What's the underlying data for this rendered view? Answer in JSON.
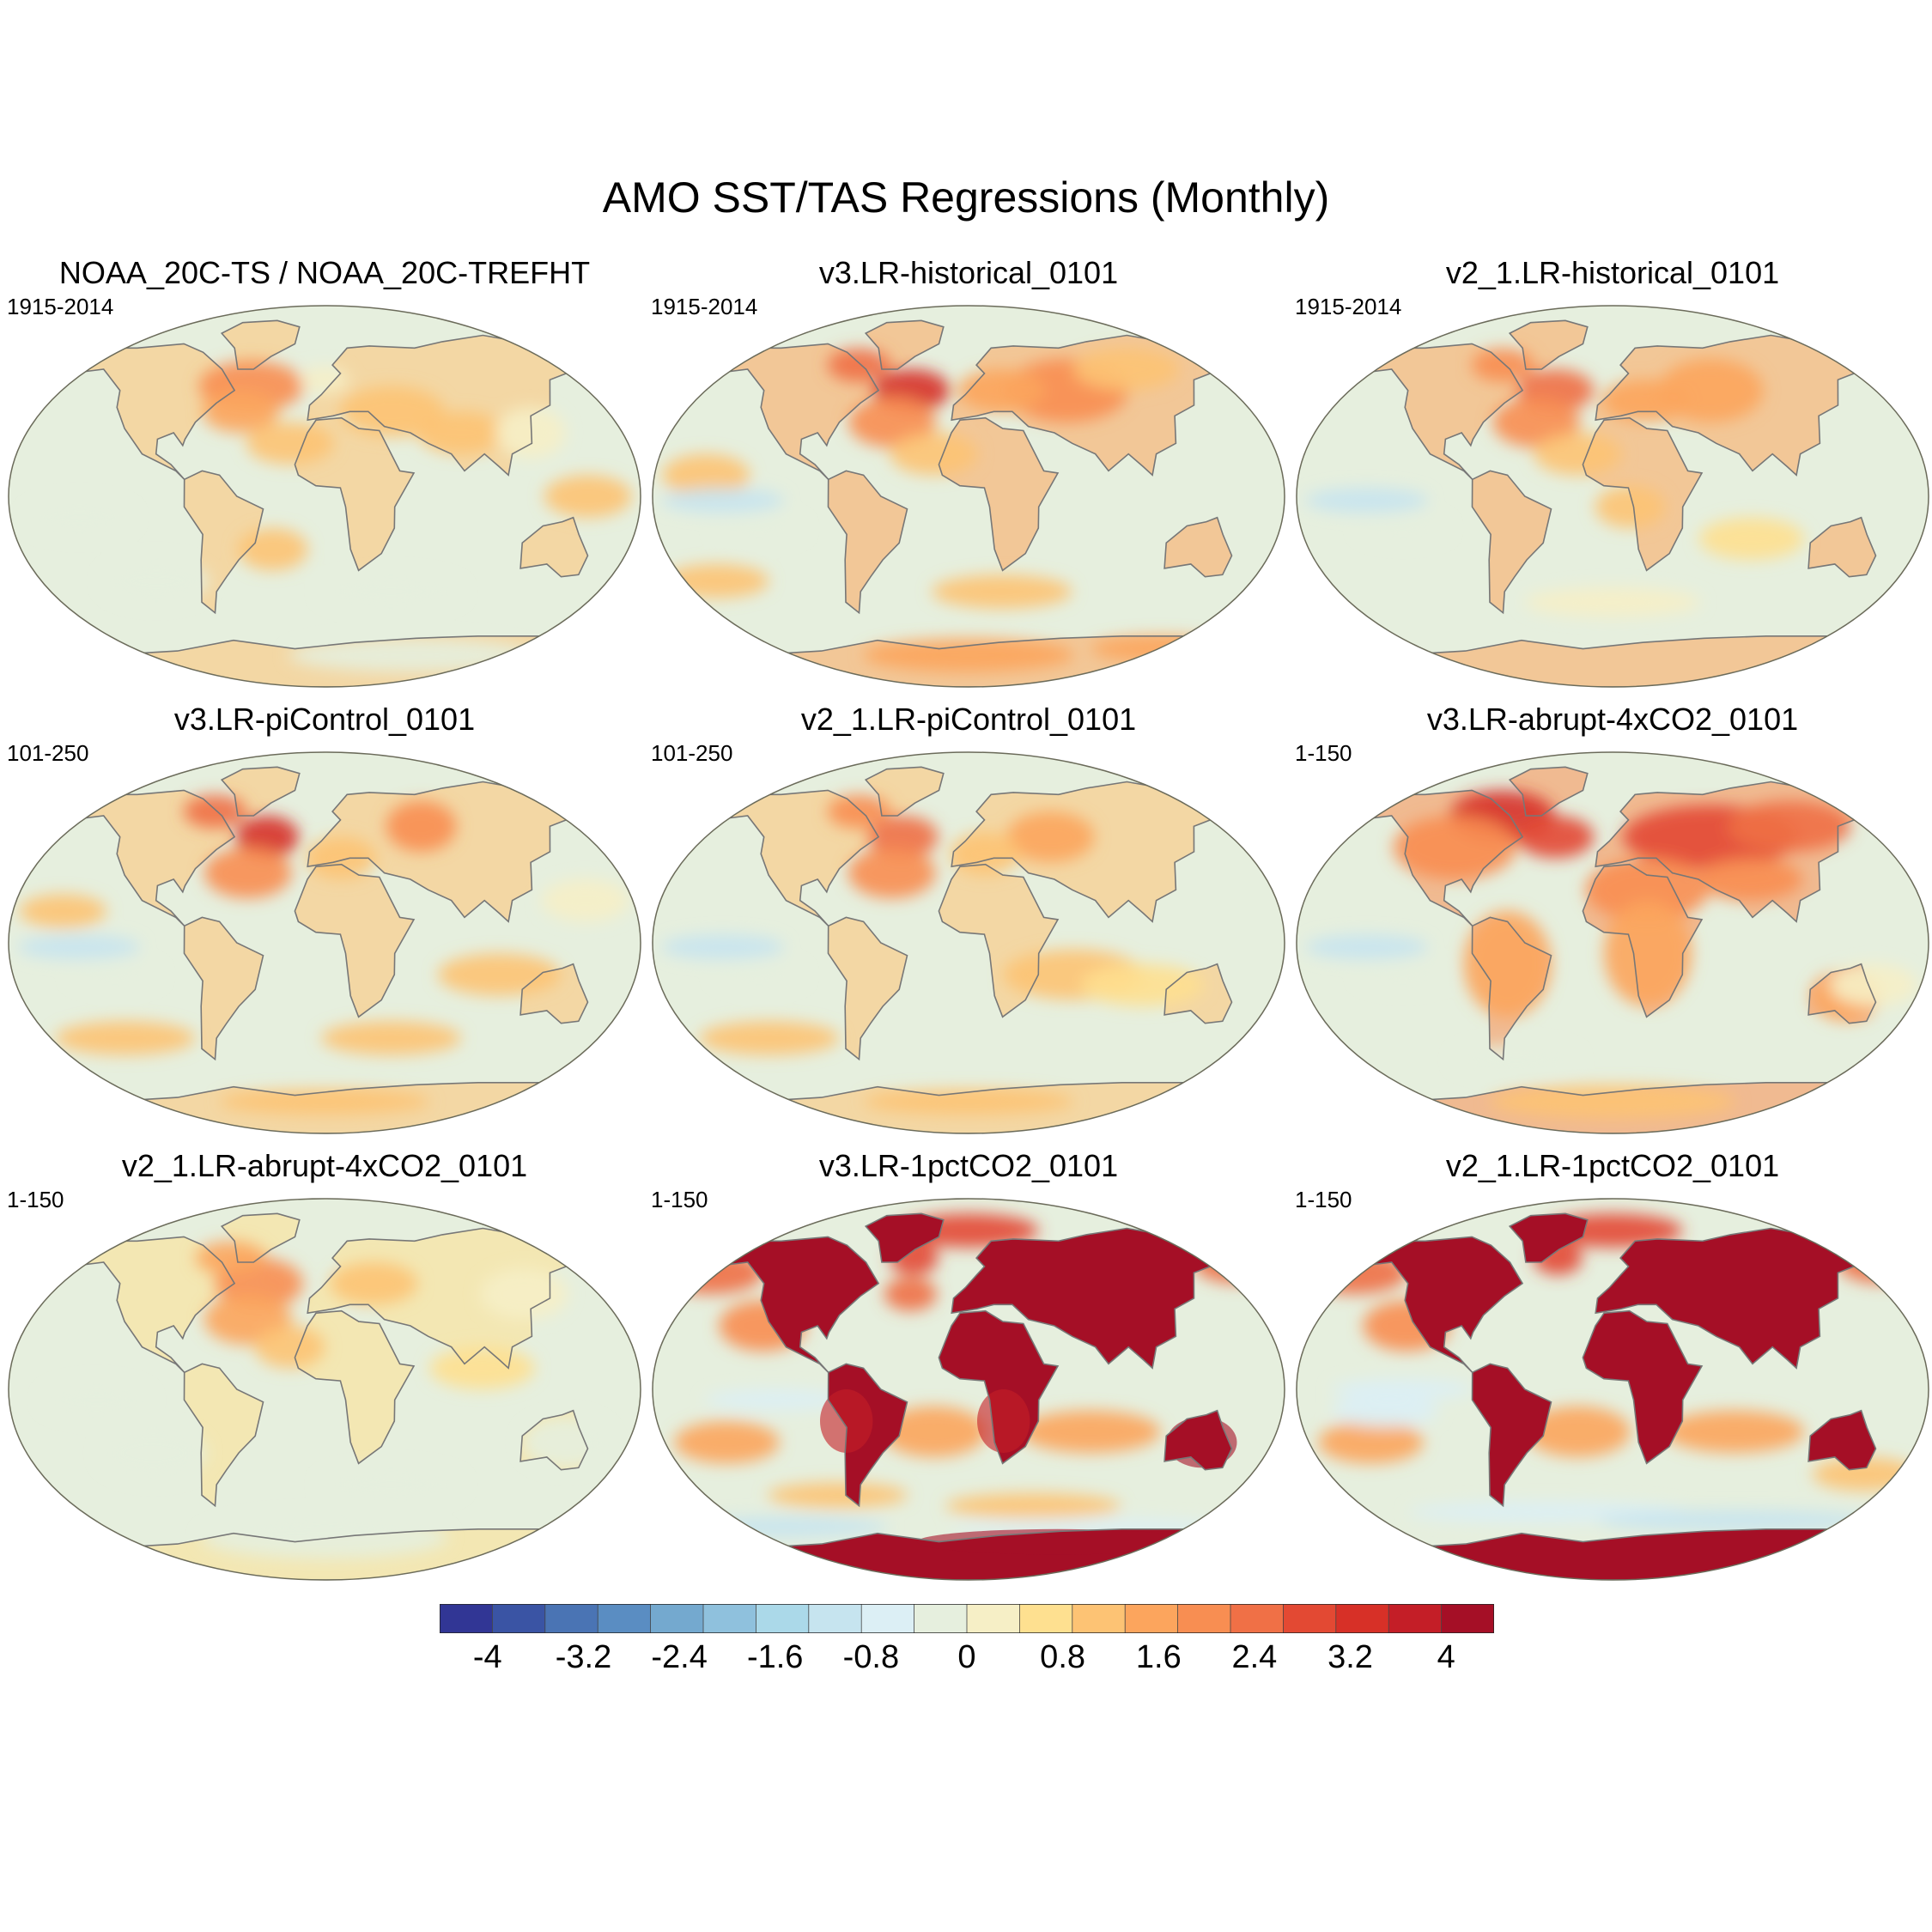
{
  "title": "AMO SST/TAS Regressions (Monthly)",
  "colors": {
    "ocean_base": "#e6efde",
    "coast": "#777777",
    "frame": "#6b6b5a",
    "scale": [
      "#313695",
      "#3a54a4",
      "#4a74b4",
      "#5a8dc2",
      "#74a9cf",
      "#8fc1dd",
      "#abd9e9",
      "#c6e4ef",
      "#dceff5",
      "#e6efde",
      "#f6efc6",
      "#fee090",
      "#fdc374",
      "#fca55d",
      "#f88e52",
      "#f07046",
      "#e34933",
      "#d73027",
      "#c41e27",
      "#a50f26"
    ]
  },
  "panels": [
    {
      "title": "NOAA_20C-TS / NOAA_20C-TREFHT",
      "period": "1915-2014",
      "pattern": "obs"
    },
    {
      "title": "v3.LR-historical_0101",
      "period": "1915-2014",
      "pattern": "hist"
    },
    {
      "title": "v2_1.LR-historical_0101",
      "period": "1915-2014",
      "pattern": "hist2"
    },
    {
      "title": "v3.LR-piControl_0101",
      "period": "101-250",
      "pattern": "pic"
    },
    {
      "title": "v2_1.LR-piControl_0101",
      "period": "101-250",
      "pattern": "pic2"
    },
    {
      "title": "v3.LR-abrupt-4xCO2_0101",
      "period": "1-150",
      "pattern": "abrupt"
    },
    {
      "title": "v2_1.LR-abrupt-4xCO2_0101",
      "period": "1-150",
      "pattern": "abrupt2"
    },
    {
      "title": "v3.LR-1pctCO2_0101",
      "period": "1-150",
      "pattern": "pct"
    },
    {
      "title": "v2_1.LR-1pctCO2_0101",
      "period": "1-150",
      "pattern": "pct2"
    }
  ],
  "colorbar": {
    "min": -4.4,
    "max": 4.4,
    "step": 0.4,
    "labels": [
      "-4",
      "-3.2",
      "-2.4",
      "-1.6",
      "-0.8",
      "0",
      "0.8",
      "1.6",
      "2.4",
      "3.2",
      "4"
    ]
  }
}
